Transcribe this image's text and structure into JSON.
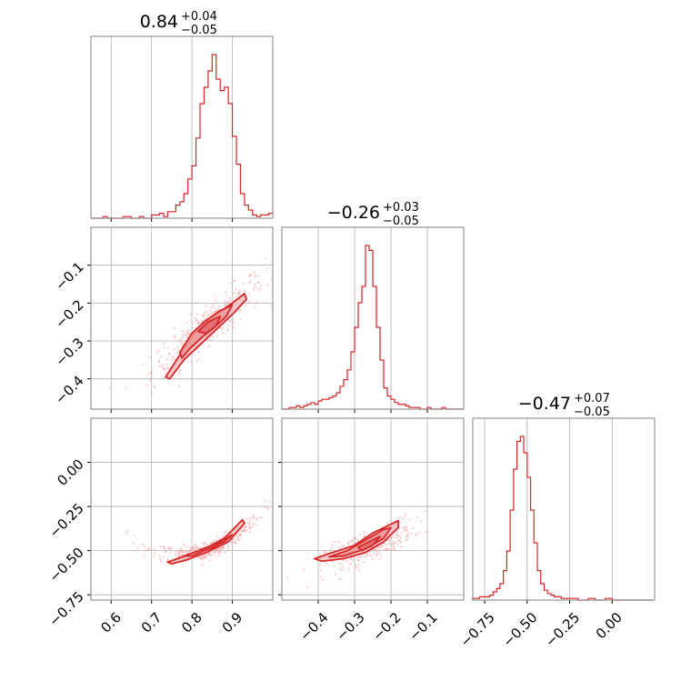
{
  "chart_data": [
    {
      "type": "histogram",
      "panel": "row0-col0",
      "title": {
        "median": "0.84",
        "plus": "+0.04",
        "minus": "−0.05"
      },
      "xlim": [
        0.55,
        1.0
      ],
      "x": [
        0.55,
        0.56,
        0.57,
        0.58,
        0.59,
        0.6,
        0.61,
        0.62,
        0.63,
        0.64,
        0.65,
        0.66,
        0.67,
        0.68,
        0.69,
        0.7,
        0.71,
        0.72,
        0.73,
        0.74,
        0.75,
        0.76,
        0.77,
        0.78,
        0.79,
        0.8,
        0.81,
        0.82,
        0.83,
        0.84,
        0.85,
        0.86,
        0.87,
        0.88,
        0.89,
        0.9,
        0.91,
        0.92,
        0.93,
        0.94,
        0.95,
        0.96,
        0.97,
        0.98,
        0.99
      ],
      "values": [
        0,
        0,
        0,
        1,
        0,
        0,
        0,
        0,
        1,
        1,
        0,
        0,
        1,
        0,
        0,
        2,
        2,
        3,
        1,
        4,
        4,
        8,
        10,
        15,
        24,
        32,
        49,
        70,
        80,
        90,
        100,
        85,
        78,
        80,
        70,
        50,
        33,
        15,
        8,
        5,
        2,
        1,
        2,
        2,
        3
      ]
    },
    {
      "type": "histogram",
      "panel": "row1-col1",
      "title": {
        "median": "−0.26",
        "plus": "+0.03",
        "minus": "−0.05"
      },
      "xlim": [
        -0.5,
        0.0
      ],
      "x": [
        -0.5,
        -0.49,
        -0.48,
        -0.47,
        -0.46,
        -0.45,
        -0.44,
        -0.43,
        -0.42,
        -0.41,
        -0.4,
        -0.39,
        -0.38,
        -0.37,
        -0.36,
        -0.35,
        -0.34,
        -0.33,
        -0.32,
        -0.31,
        -0.3,
        -0.29,
        -0.28,
        -0.27,
        -0.26,
        -0.25,
        -0.24,
        -0.23,
        -0.22,
        -0.21,
        -0.2,
        -0.19,
        -0.18,
        -0.17,
        -0.16,
        -0.15,
        -0.14,
        -0.13,
        -0.12,
        -0.11,
        -0.1,
        -0.09,
        -0.08,
        -0.07,
        -0.06,
        -0.05,
        -0.04,
        -0.03,
        -0.02,
        -0.01
      ],
      "values": [
        0,
        0,
        1,
        1,
        2,
        1,
        2,
        3,
        4,
        3,
        5,
        6,
        6,
        7,
        8,
        10,
        14,
        18,
        24,
        35,
        50,
        65,
        75,
        100,
        97,
        75,
        50,
        30,
        13,
        8,
        6,
        4,
        3,
        3,
        2,
        1,
        1,
        1,
        0,
        0,
        1,
        0,
        0,
        0,
        1,
        0,
        0,
        0,
        0,
        0
      ]
    },
    {
      "type": "histogram",
      "panel": "row2-col2",
      "title": {
        "median": "−0.47",
        "plus": "+0.07",
        "minus": "−0.05"
      },
      "xlim": [
        -0.82,
        0.25
      ],
      "x": [
        -0.82,
        -0.8,
        -0.78,
        -0.76,
        -0.74,
        -0.72,
        -0.7,
        -0.68,
        -0.66,
        -0.64,
        -0.62,
        -0.6,
        -0.58,
        -0.56,
        -0.54,
        -0.52,
        -0.5,
        -0.48,
        -0.46,
        -0.44,
        -0.42,
        -0.4,
        -0.38,
        -0.36,
        -0.34,
        -0.32,
        -0.3,
        -0.28,
        -0.26,
        -0.24,
        -0.22,
        -0.2,
        -0.18,
        -0.16,
        -0.14,
        -0.12,
        -0.1,
        -0.08,
        -0.06,
        -0.04,
        -0.02,
        0.0,
        0.02,
        0.04,
        0.06,
        0.08,
        0.1,
        0.12,
        0.14,
        0.16,
        0.18,
        0.2,
        0.22
      ],
      "values": [
        1,
        1,
        2,
        2,
        2,
        3,
        5,
        7,
        10,
        18,
        30,
        55,
        80,
        97,
        100,
        90,
        75,
        55,
        35,
        18,
        10,
        6,
        4,
        3,
        2,
        2,
        1,
        1,
        1,
        1,
        1,
        0,
        0,
        0,
        1,
        1,
        0,
        0,
        0,
        1,
        1,
        0,
        0,
        0,
        0,
        0,
        0,
        0,
        0,
        0,
        0,
        0,
        0
      ]
    },
    {
      "type": "scatter",
      "panel": "row1-col0",
      "xlim": [
        0.55,
        1.0
      ],
      "ylim": [
        -0.48,
        0.0
      ],
      "y_ticks": [
        "−0.1",
        "−0.2",
        "−0.3",
        "−0.4"
      ],
      "y_tick_values": [
        -0.1,
        -0.2,
        -0.3,
        -0.4
      ],
      "trend": {
        "slope": 0.85,
        "intercept": -0.974,
        "spread": 0.025
      },
      "contours": [
        [
          [
            0.735,
            -0.395
          ],
          [
            0.765,
            -0.345
          ],
          [
            0.8,
            -0.29
          ],
          [
            0.83,
            -0.255
          ],
          [
            0.86,
            -0.23
          ],
          [
            0.9,
            -0.2
          ],
          [
            0.93,
            -0.175
          ],
          [
            0.935,
            -0.19
          ],
          [
            0.9,
            -0.23
          ],
          [
            0.87,
            -0.26
          ],
          [
            0.84,
            -0.29
          ],
          [
            0.81,
            -0.32
          ],
          [
            0.78,
            -0.35
          ],
          [
            0.745,
            -0.4
          ]
        ],
        [
          [
            0.77,
            -0.33
          ],
          [
            0.8,
            -0.28
          ],
          [
            0.83,
            -0.25
          ],
          [
            0.87,
            -0.22
          ],
          [
            0.9,
            -0.205
          ],
          [
            0.885,
            -0.235
          ],
          [
            0.855,
            -0.265
          ],
          [
            0.825,
            -0.29
          ],
          [
            0.795,
            -0.32
          ],
          [
            0.775,
            -0.345
          ]
        ],
        [
          [
            0.815,
            -0.275
          ],
          [
            0.84,
            -0.25
          ],
          [
            0.87,
            -0.235
          ],
          [
            0.86,
            -0.26
          ],
          [
            0.835,
            -0.28
          ]
        ]
      ]
    },
    {
      "type": "scatter",
      "panel": "row2-col0",
      "xlim": [
        0.55,
        1.0
      ],
      "ylim": [
        -0.78,
        0.25
      ],
      "x_ticks": [
        "0.6",
        "0.7",
        "0.8",
        "0.9"
      ],
      "x_tick_values": [
        0.6,
        0.7,
        0.8,
        0.9
      ],
      "y_ticks": [
        "0.00",
        "−0.25",
        "−0.50",
        "−0.75"
      ],
      "y_tick_values": [
        0.0,
        -0.25,
        -0.5,
        -0.75
      ],
      "trend": {
        "curve": "quadratic",
        "a": 6.0,
        "b": -9.3,
        "c": 3.08,
        "spread": 0.025
      },
      "contours": [
        [
          [
            0.74,
            -0.565
          ],
          [
            0.79,
            -0.525
          ],
          [
            0.84,
            -0.48
          ],
          [
            0.88,
            -0.43
          ],
          [
            0.925,
            -0.325
          ],
          [
            0.93,
            -0.345
          ],
          [
            0.89,
            -0.45
          ],
          [
            0.84,
            -0.505
          ],
          [
            0.79,
            -0.55
          ],
          [
            0.75,
            -0.575
          ]
        ],
        [
          [
            0.78,
            -0.53
          ],
          [
            0.83,
            -0.49
          ],
          [
            0.87,
            -0.45
          ],
          [
            0.9,
            -0.41
          ],
          [
            0.88,
            -0.45
          ],
          [
            0.84,
            -0.49
          ],
          [
            0.8,
            -0.53
          ]
        ],
        [
          [
            0.82,
            -0.495
          ],
          [
            0.85,
            -0.47
          ],
          [
            0.87,
            -0.455
          ],
          [
            0.86,
            -0.475
          ],
          [
            0.83,
            -0.5
          ]
        ]
      ]
    },
    {
      "type": "scatter",
      "panel": "row2-col1",
      "xlim": [
        -0.5,
        0.0
      ],
      "ylim": [
        -0.78,
        0.25
      ],
      "x_ticks": [
        "−0.4",
        "−0.3",
        "−0.2",
        "−0.1"
      ],
      "x_tick_values": [
        -0.4,
        -0.3,
        -0.2,
        -0.1
      ],
      "trend": {
        "slope": 0.85,
        "intercept": -0.25,
        "spread": 0.035
      },
      "contours": [
        [
          [
            -0.41,
            -0.545
          ],
          [
            -0.36,
            -0.51
          ],
          [
            -0.3,
            -0.47
          ],
          [
            -0.25,
            -0.4
          ],
          [
            -0.2,
            -0.35
          ],
          [
            -0.18,
            -0.33
          ],
          [
            -0.18,
            -0.37
          ],
          [
            -0.22,
            -0.45
          ],
          [
            -0.27,
            -0.51
          ],
          [
            -0.33,
            -0.545
          ],
          [
            -0.39,
            -0.56
          ]
        ],
        [
          [
            -0.37,
            -0.535
          ],
          [
            -0.32,
            -0.5
          ],
          [
            -0.27,
            -0.44
          ],
          [
            -0.22,
            -0.38
          ],
          [
            -0.2,
            -0.37
          ],
          [
            -0.22,
            -0.43
          ],
          [
            -0.27,
            -0.49
          ],
          [
            -0.33,
            -0.53
          ]
        ],
        [
          [
            -0.29,
            -0.48
          ],
          [
            -0.25,
            -0.44
          ],
          [
            -0.23,
            -0.42
          ],
          [
            -0.25,
            -0.47
          ],
          [
            -0.28,
            -0.5
          ]
        ]
      ]
    },
    {
      "type": "histogram-axis",
      "panel": "row2-col2-axis",
      "x_ticks": [
        "−0.75",
        "−0.50",
        "−0.25",
        "0.00"
      ],
      "x_tick_values": [
        -0.75,
        -0.5,
        -0.25,
        0.0
      ]
    }
  ],
  "colors": {
    "accent": "#d62728",
    "scatter": "#f3a3a4",
    "fill_outer": "#f4c2c2",
    "fill_mid": "#eb9a9b",
    "fill_inner": "#e06b6d",
    "grid": "#b0b0b0",
    "frame": "#808080"
  }
}
